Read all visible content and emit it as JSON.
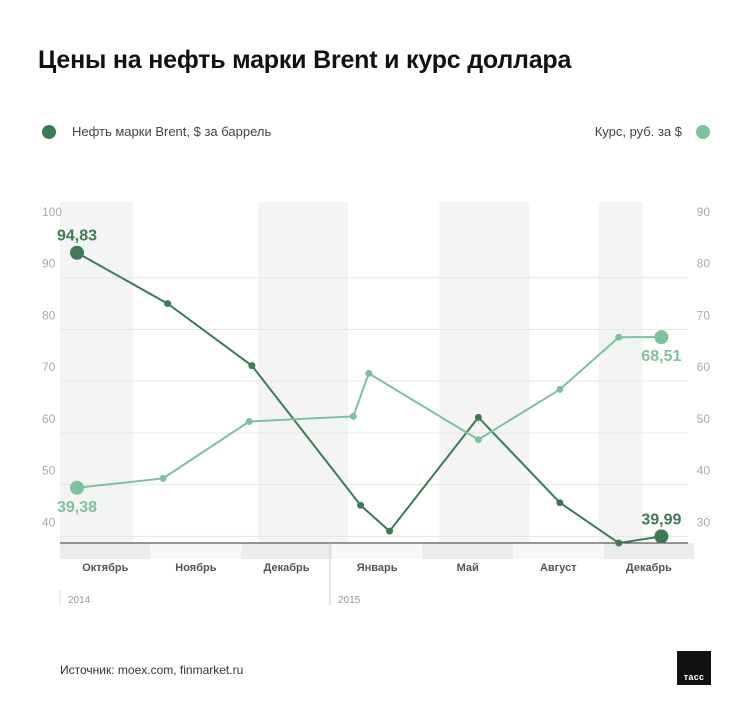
{
  "title": "Цены на нефть марки Brent и курс доллара",
  "legend": {
    "left": "Нефть марки Brent, $ за баррель",
    "right": "Курс, руб. за $"
  },
  "colors": {
    "brent": "#3e7a55",
    "usd": "#7ec19f",
    "title": "#111111",
    "grid": "#e6e6e6",
    "band": "#ededed"
  },
  "source": "Источник: moex.com, finmarket.ru",
  "logo_text": "тасс",
  "chart_data": {
    "type": "line",
    "x_categories": [
      "Октябрь",
      "Ноябрь",
      "Декабрь",
      "Январь",
      "Май",
      "Август",
      "Декабрь"
    ],
    "year_labels": [
      "2014",
      "2015"
    ],
    "left_axis": {
      "ticks": [
        "100",
        "90",
        "80",
        "70",
        "60",
        "50",
        "40"
      ],
      "range": [
        36,
        100
      ]
    },
    "right_axis": {
      "ticks": [
        "90",
        "80",
        "70",
        "60",
        "50",
        "40",
        "30"
      ],
      "range": [
        26,
        90
      ]
    },
    "series": [
      {
        "name": "Нефть марки Brent, $ за баррель",
        "axis": "left",
        "x": [
          0,
          1,
          1.93,
          3.13,
          3.45,
          4.43,
          5.33,
          5.98,
          6.45
        ],
        "values": [
          94.83,
          85,
          73,
          46,
          41,
          63,
          46.5,
          38.7,
          39.99
        ],
        "labels": [
          "94,83",
          "39,99"
        ]
      },
      {
        "name": "Курс, руб. за $",
        "axis": "right",
        "x": [
          0,
          0.95,
          1.9,
          3.05,
          3.22,
          4.43,
          5.33,
          5.98,
          6.45
        ],
        "values": [
          39.38,
          41.2,
          52.2,
          53.2,
          61.5,
          48.7,
          58.4,
          68.5,
          68.51
        ],
        "labels": [
          "39,38",
          "68,51"
        ]
      }
    ]
  }
}
